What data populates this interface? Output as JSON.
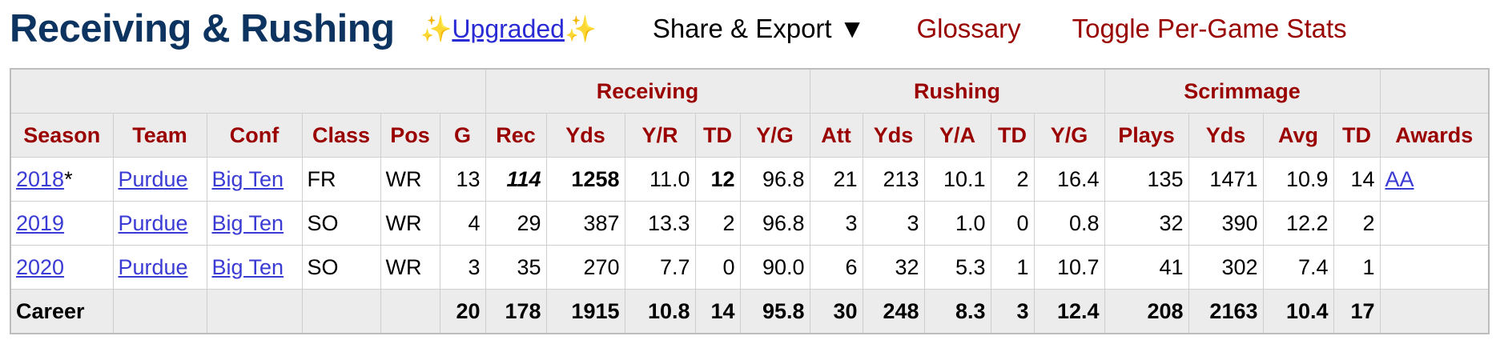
{
  "header": {
    "title": "Receiving & Rushing",
    "sparkle": "✨",
    "upgraded": "Upgraded",
    "menu": [
      "Share & Export ▼",
      "Glossary",
      "Toggle Per-Game Stats"
    ]
  },
  "table": {
    "groups": [
      "Receiving",
      "Rushing",
      "Scrimmage"
    ],
    "columns": [
      "Season",
      "Team",
      "Conf",
      "Class",
      "Pos",
      "G",
      "Rec",
      "Yds",
      "Y/R",
      "TD",
      "Y/G",
      "Att",
      "Yds",
      "Y/A",
      "TD",
      "Y/G",
      "Plays",
      "Yds",
      "Avg",
      "TD",
      "Awards"
    ],
    "rows": [
      {
        "cells": [
          "2018",
          "Purdue",
          "Big Ten",
          "FR",
          "WR",
          "13",
          "114",
          "1258",
          "11.0",
          "12",
          "96.8",
          "21",
          "213",
          "10.1",
          "2",
          "16.4",
          "135",
          "1471",
          "10.9",
          "14",
          "AA"
        ],
        "note": "*"
      },
      {
        "cells": [
          "2019",
          "Purdue",
          "Big Ten",
          "SO",
          "WR",
          "4",
          "29",
          "387",
          "13.3",
          "2",
          "96.8",
          "3",
          "3",
          "1.0",
          "0",
          "0.8",
          "32",
          "390",
          "12.2",
          "2"
        ]
      },
      {
        "cells": [
          "2020",
          "Purdue",
          "Big Ten",
          "SO",
          "WR",
          "3",
          "35",
          "270",
          "7.7",
          "0",
          "90.0",
          "6",
          "32",
          "5.3",
          "1",
          "10.7",
          "41",
          "302",
          "7.4",
          "1"
        ]
      }
    ],
    "career": {
      "label": "Career",
      "values": [
        "20",
        "178",
        "1915",
        "10.8",
        "14",
        "95.8",
        "30",
        "248",
        "8.3",
        "3",
        "12.4",
        "208",
        "2163",
        "10.4",
        "17"
      ]
    }
  }
}
